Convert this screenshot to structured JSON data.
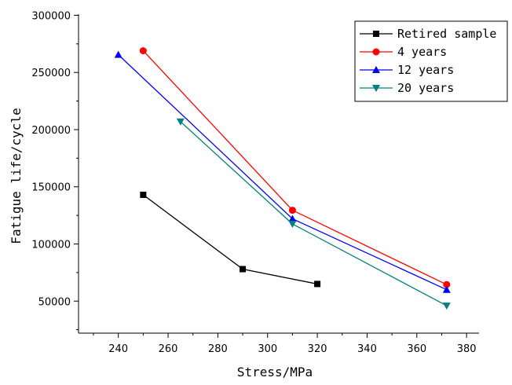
{
  "chart_data": {
    "type": "line",
    "xlabel": "Stress/MPa",
    "ylabel": "Fatigue life/cycle",
    "xlim": [
      224,
      385
    ],
    "ylim": [
      22000,
      301000
    ],
    "xticks": [
      240,
      260,
      280,
      300,
      320,
      340,
      360,
      380
    ],
    "yticks": [
      50000,
      100000,
      150000,
      200000,
      250000,
      300000
    ],
    "legend_position": "top-right",
    "grid": false,
    "series": [
      {
        "name": "Retired sample",
        "color": "#000000",
        "marker": "square",
        "x": [
          250,
          290,
          320
        ],
        "y": [
          143000,
          78000,
          65000
        ]
      },
      {
        "name": "4  years",
        "color": "#ff0000",
        "marker": "circle",
        "x": [
          250,
          310,
          372
        ],
        "y": [
          269000,
          129500,
          64500
        ]
      },
      {
        "name": "12 years",
        "color": "#0000ff",
        "marker": "triangle-up",
        "x": [
          240,
          310,
          372
        ],
        "y": [
          265500,
          122000,
          60000
        ]
      },
      {
        "name": "20 years",
        "color": "#008080",
        "marker": "triangle-down",
        "x": [
          265,
          310,
          372
        ],
        "y": [
          207000,
          117500,
          46000
        ]
      }
    ]
  }
}
